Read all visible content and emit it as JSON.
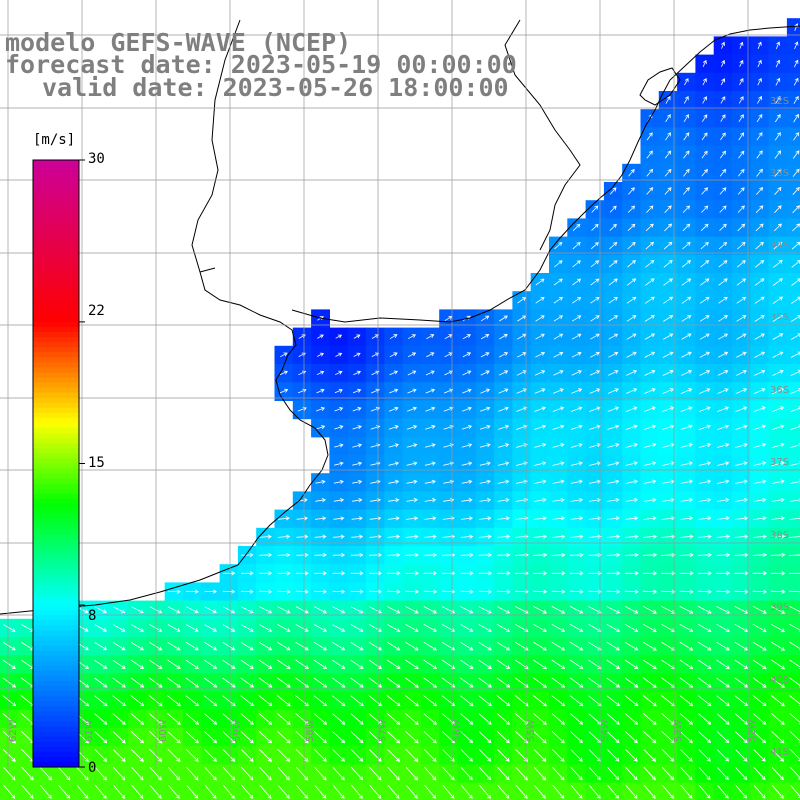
{
  "title": {
    "line1": "modelo GEFS-WAVE (NCEP)",
    "line2": "forecast date: 2023-05-19 00:00:00",
    "line3": "valid date: 2023-05-26 18:00:00"
  },
  "colorbar": {
    "units": "[m/s]",
    "ticks": [
      "30",
      "22",
      "15",
      "8",
      "0"
    ],
    "tick_values": [
      30,
      22,
      15,
      8,
      0
    ],
    "range": [
      0,
      30
    ],
    "colors": [
      "#0000ff",
      "#00ffff",
      "#00ff00",
      "#ffff00",
      "#ff0000",
      "#cc0099"
    ]
  },
  "map": {
    "variable": "wind speed and direction",
    "lat_labels": [
      "32S",
      "33S",
      "34S",
      "35S",
      "36S",
      "37S",
      "38S",
      "39S",
      "40S",
      "41S"
    ],
    "lon_labels": [
      "62W",
      "61W",
      "60W",
      "59W",
      "58W",
      "57W",
      "56W",
      "55W",
      "54W",
      "53W",
      "52W"
    ],
    "land_color": "#ffffff",
    "coast_color": "#000000",
    "grid_color": "#999999",
    "arrow_color": "#ffffff"
  }
}
